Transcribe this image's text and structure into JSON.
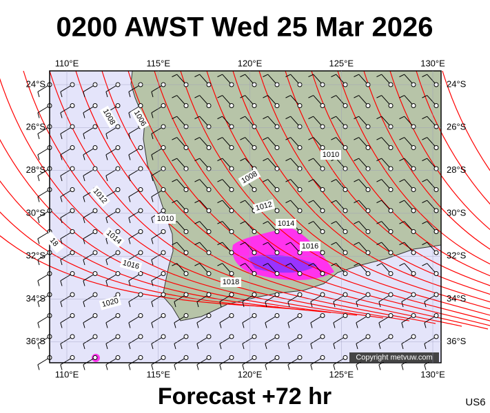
{
  "header": {
    "title": "0200 AWST Wed 25 Mar 2026"
  },
  "map": {
    "lon_labels": [
      "110°E",
      "115°E",
      "120°E",
      "125°E",
      "130°E"
    ],
    "lat_labels": [
      "24°S",
      "26°S",
      "28°S",
      "30°S",
      "32°S",
      "34°S",
      "36°S"
    ],
    "isobar_labels": [
      "1008",
      "1006",
      "1010",
      "1008",
      "1012",
      "1014",
      "1016",
      "1018",
      "1010",
      "1012",
      "1014",
      "1016",
      "1020",
      "18"
    ],
    "copyright": "Copyright metvuw.com"
  },
  "footer": {
    "forecast": "Forecast +72 hr",
    "code": "US6"
  }
}
